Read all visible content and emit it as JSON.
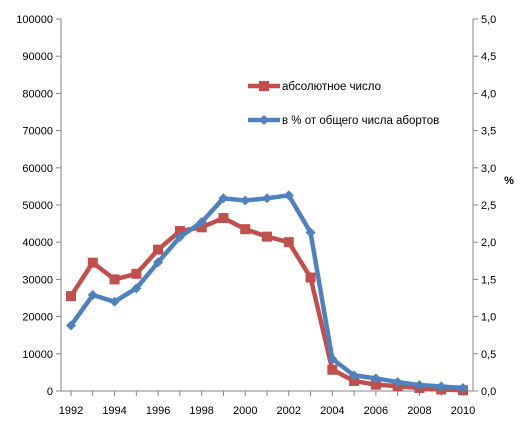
{
  "chart_data": {
    "type": "line",
    "x": [
      1992,
      1993,
      1994,
      1995,
      1996,
      1997,
      1998,
      1999,
      2000,
      2001,
      2002,
      2003,
      2004,
      2005,
      2006,
      2007,
      2008,
      2009,
      2010
    ],
    "x_tick_labels": [
      "1992",
      "1994",
      "1996",
      "1998",
      "2000",
      "2002",
      "2004",
      "2006",
      "2008",
      "2010"
    ],
    "y_left": {
      "label": "",
      "range": [
        0,
        100000
      ],
      "tick_labels": [
        "0",
        "10000",
        "20000",
        "30000",
        "40000",
        "50000",
        "60000",
        "70000",
        "80000",
        "90000",
        "100000"
      ]
    },
    "y_right": {
      "label": "%",
      "range": [
        0,
        5
      ],
      "tick_labels": [
        "0,0",
        "0,5",
        "1,0",
        "1,5",
        "2,0",
        "2,5",
        "3,0",
        "3,5",
        "4,0",
        "4,5",
        "5,0"
      ]
    },
    "grid": false,
    "legend_position": "center-right",
    "series": [
      {
        "name": "абсолютное число",
        "axis": "left",
        "marker": "square",
        "color": "#C0504D",
        "values": [
          25500,
          34500,
          30000,
          31500,
          38000,
          43000,
          44000,
          46500,
          43500,
          41500,
          40000,
          30500,
          5700,
          2700,
          1700,
          1300,
          800,
          400,
          200
        ]
      },
      {
        "name": "в % от общего числа абортов",
        "axis": "right",
        "marker": "diamond",
        "color": "#4F81BD",
        "values": [
          0.88,
          1.29,
          1.2,
          1.38,
          1.73,
          2.07,
          2.27,
          2.59,
          2.56,
          2.59,
          2.63,
          2.13,
          0.43,
          0.21,
          0.17,
          0.12,
          0.08,
          0.06,
          0.04
        ]
      }
    ]
  }
}
